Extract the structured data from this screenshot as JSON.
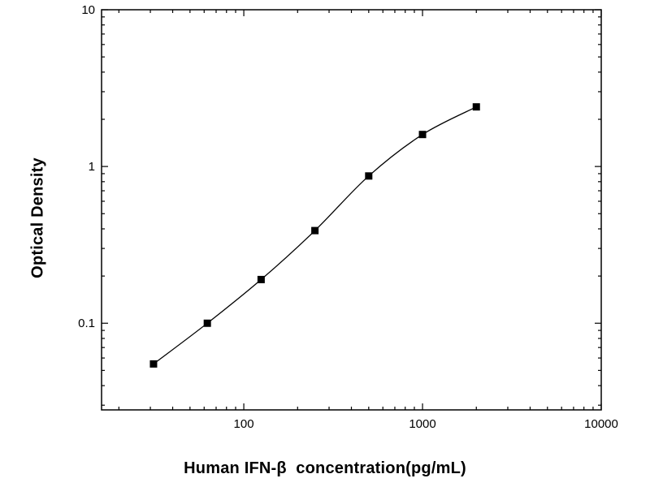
{
  "page": {
    "background": "#ffffff",
    "foreground": "#000000"
  },
  "chart_data": {
    "type": "scatter",
    "title": "",
    "xlabel": "Human IFN-β  concentration(pg/mL)",
    "ylabel": "Optical Density",
    "x_scale": "log",
    "y_scale": "log",
    "xlim": [
      16,
      10000
    ],
    "ylim": [
      0.028,
      10
    ],
    "x_major_ticks": [
      100,
      1000,
      10000
    ],
    "x_tick_labels": [
      "100",
      "1000",
      "10000"
    ],
    "y_major_ticks": [
      0.1,
      1,
      10
    ],
    "y_tick_labels": [
      "0.1",
      "1",
      "10"
    ],
    "grid": false,
    "legend": "none",
    "marker": "filled-square",
    "marker_color": "#000000",
    "line_color": "#000000",
    "points": [
      {
        "x": 31.25,
        "y": 0.055
      },
      {
        "x": 62.5,
        "y": 0.1
      },
      {
        "x": 125,
        "y": 0.19
      },
      {
        "x": 250,
        "y": 0.39
      },
      {
        "x": 500,
        "y": 0.87
      },
      {
        "x": 1000,
        "y": 1.6
      },
      {
        "x": 2000,
        "y": 2.4
      }
    ]
  }
}
